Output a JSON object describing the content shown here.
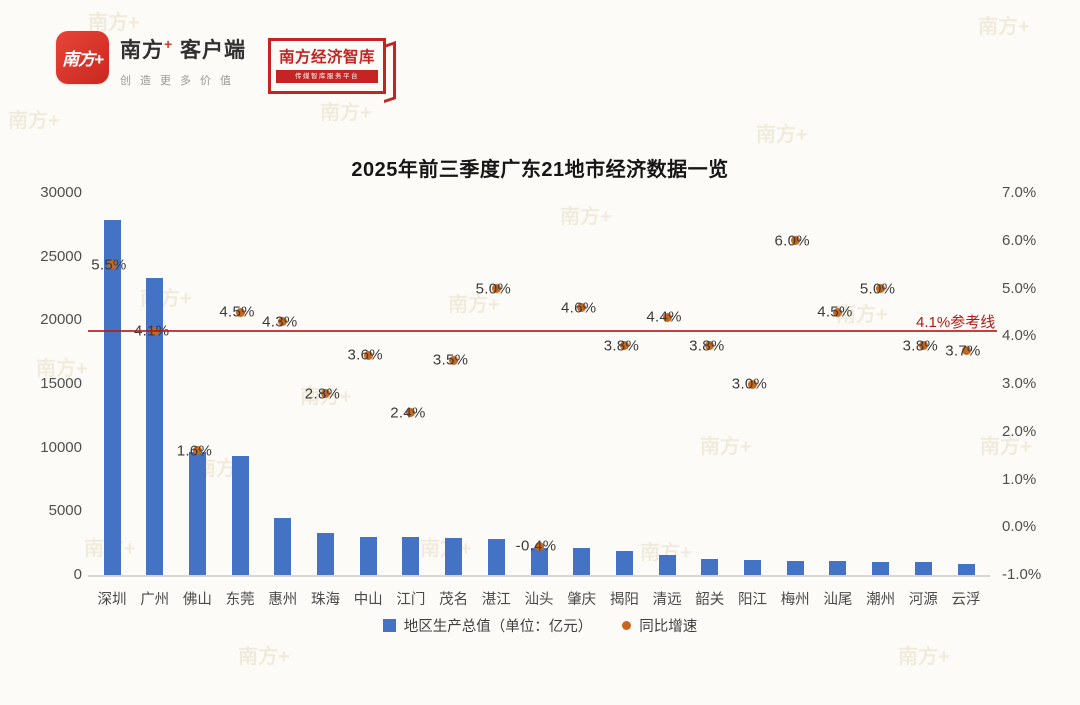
{
  "header": {
    "logo1": {
      "icon_text": "南方+",
      "brand": "南方",
      "plus": "+",
      "suffix": "客户端",
      "tagline": "创造更多价值"
    },
    "logo2": {
      "title": "南方经济智库",
      "tagline": "传媒智库服务平台"
    }
  },
  "watermark_text": "南方+",
  "chart_data": {
    "type": "bar",
    "subtype": "combo-bar-scatter",
    "title": "2025年前三季度广东21地市经济数据一览",
    "categories": [
      "深圳",
      "广州",
      "佛山",
      "东莞",
      "惠州",
      "珠海",
      "中山",
      "江门",
      "茂名",
      "湛江",
      "汕头",
      "肇庆",
      "揭阳",
      "清远",
      "韶关",
      "阳江",
      "梅州",
      "汕尾",
      "潮州",
      "河源",
      "云浮"
    ],
    "series": [
      {
        "name": "地区生产总值（单位：亿元）",
        "type": "bar",
        "color": "#4472c4",
        "values": [
          27900,
          23300,
          9650,
          9350,
          4470,
          3300,
          3000,
          2990,
          2920,
          2830,
          2150,
          2110,
          1880,
          1590,
          1250,
          1180,
          1110,
          1090,
          1020,
          1000,
          870
        ]
      },
      {
        "name": "同比增速",
        "type": "scatter",
        "color": "#c7671d",
        "values": [
          5.5,
          4.1,
          1.6,
          4.5,
          4.3,
          2.8,
          3.6,
          2.4,
          3.5,
          5.0,
          -0.4,
          4.6,
          3.8,
          4.4,
          3.8,
          3.0,
          6.0,
          4.5,
          5.0,
          3.8,
          3.7
        ],
        "labels": [
          "5.5%",
          "4.1%",
          "1.6%",
          "4.5%",
          "4.3%",
          "2.8%",
          "3.6%",
          "2.4%",
          "3.5%",
          "5.0%",
          "-0.4%",
          "4.6%",
          "3.8%",
          "4.4%",
          "3.8%",
          "3.0%",
          "6.0%",
          "4.5%",
          "5.0%",
          "3.8%",
          "3.7%"
        ]
      }
    ],
    "left_axis": {
      "label": "",
      "min": 0,
      "max": 30000,
      "ticks": [
        "30000",
        "25000",
        "20000",
        "15000",
        "10000",
        "5000",
        "0"
      ]
    },
    "right_axis": {
      "label": "",
      "min": -1.0,
      "max": 7.0,
      "ticks": [
        "7.0%",
        "6.0%",
        "5.0%",
        "4.0%",
        "3.0%",
        "2.0%",
        "1.0%",
        "0.0%",
        "-1.0%"
      ]
    },
    "reference_line": {
      "value": 4.1,
      "label": "4.1%参考线",
      "color": "#b71814"
    },
    "grid": "off",
    "legend_position": "bottom"
  }
}
